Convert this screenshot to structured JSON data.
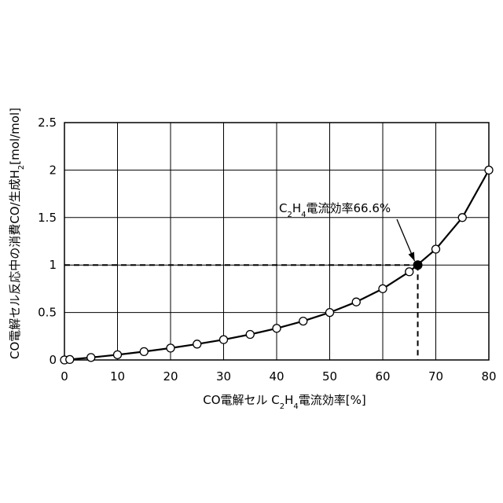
{
  "chart_data": {
    "type": "scatter",
    "xlabel_parts": [
      "CO電解セル C",
      "2",
      "H",
      "4",
      "電流効率[%]"
    ],
    "ylabel_parts": [
      "CO電解セル反応中の消費CO/生成H",
      "2",
      "[mol/mol]"
    ],
    "xlim": [
      0,
      80
    ],
    "ylim": [
      0,
      2.5
    ],
    "x_ticks": [
      0,
      10,
      20,
      30,
      40,
      50,
      60,
      70,
      80
    ],
    "x_tick_labels": [
      "0",
      "10",
      "20",
      "30",
      "40",
      "50",
      "60",
      "70",
      "80"
    ],
    "y_ticks": [
      0,
      0.5,
      1,
      1.5,
      2,
      2.5
    ],
    "y_tick_labels": [
      "0",
      "0.5",
      "1",
      "1.5",
      "2",
      "2.5"
    ],
    "grid": true,
    "series": [
      {
        "marker": "open-circle",
        "line": true,
        "x": [
          0,
          1,
          5,
          10,
          15,
          20,
          25,
          30,
          35,
          40,
          45,
          50,
          55,
          60,
          65,
          70,
          75,
          80
        ],
        "y": [
          0,
          0.005,
          0.026,
          0.055,
          0.088,
          0.125,
          0.167,
          0.214,
          0.269,
          0.333,
          0.409,
          0.5,
          0.611,
          0.75,
          0.929,
          1.167,
          1.5,
          2.0
        ]
      }
    ],
    "highlight": {
      "x": 66.6,
      "y": 1.0,
      "marker": "filled-circle",
      "guide_lines": "dashed",
      "label_parts": [
        "C",
        "2",
        "H",
        "4",
        "電流効率66.6%"
      ]
    }
  },
  "colors": {
    "line": "#000000",
    "grid": "#000000",
    "background": "#ffffff"
  }
}
